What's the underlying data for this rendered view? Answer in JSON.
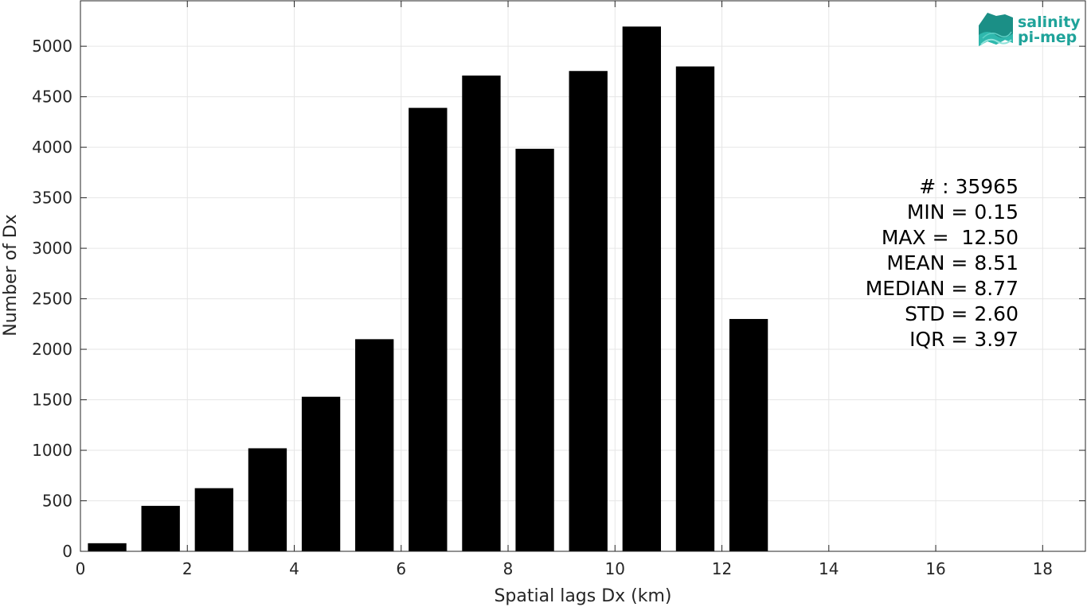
{
  "chart_data": {
    "type": "bar",
    "xlabel": "Spatial lags Dx (km)",
    "ylabel": "Number of Dx",
    "xlim": [
      0,
      18.8
    ],
    "ylim": [
      0,
      5450
    ],
    "x_ticks": [
      0,
      2,
      4,
      6,
      8,
      10,
      12,
      14,
      16,
      18
    ],
    "y_ticks": [
      0,
      500,
      1000,
      1500,
      2000,
      2500,
      3000,
      3500,
      4000,
      4500,
      5000
    ],
    "grid": true,
    "bar_color": "#000000",
    "bin_width": 1,
    "bar_width_fraction": 0.72,
    "x": [
      0.5,
      1.5,
      2.5,
      3.5,
      4.5,
      5.5,
      6.5,
      7.5,
      8.5,
      9.5,
      10.5,
      11.5,
      12.5
    ],
    "values": [
      80,
      450,
      625,
      1020,
      1530,
      2100,
      4390,
      4710,
      3985,
      4755,
      5195,
      4800,
      2300
    ]
  },
  "stats": {
    "lines": [
      "# : 35965",
      "MIN = 0.15",
      "MAX =  12.50",
      "MEAN = 8.51",
      "MEDIAN = 8.77",
      "STD = 2.60",
      "IQR = 3.97"
    ]
  },
  "logo": {
    "line1": "salinity",
    "line2": "pi-mep",
    "color": "#1fa39a"
  }
}
